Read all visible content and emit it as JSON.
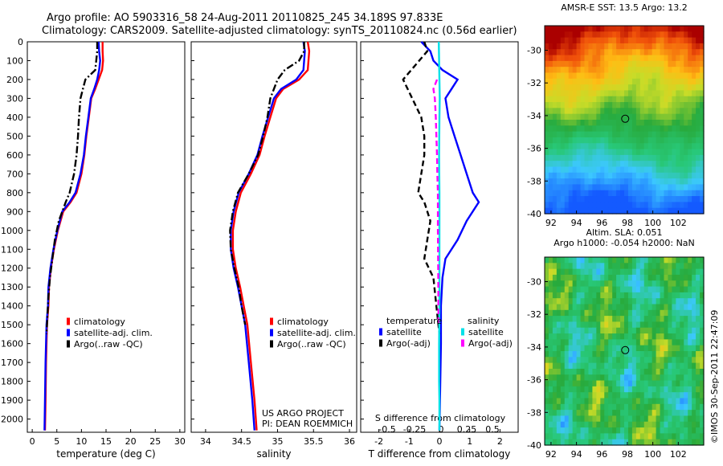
{
  "title_line1": "Argo profile: AO 5903316_58 24-Aug-2011 20110825_245 34.189S 97.833E",
  "title_line2": "Climatology: CARS2009. Satellite-adjusted climatology: synTS_20110824.nc (0.56d earlier)",
  "footer_credit": "©IMOS 30-Sep-2011 22:47:09",
  "project_line1": "US ARGO PROJECT",
  "project_line2": "PI: DEAN ROEMMICH",
  "colors": {
    "climatology": "#ff0000",
    "satellite": "#0000ff",
    "argo": "#000000",
    "sal_sat": "#00e0e8",
    "sal_argo": "#ff00ff"
  },
  "chart_data": [
    {
      "id": "temperature",
      "type": "line",
      "xlabel": "temperature (deg C)",
      "xlim": [
        -1,
        31
      ],
      "ylim": [
        2070,
        0
      ],
      "xticks": [
        0,
        5,
        10,
        15,
        20,
        25,
        30
      ],
      "yticks": [
        0,
        100,
        200,
        300,
        400,
        500,
        600,
        700,
        800,
        900,
        1000,
        1100,
        1200,
        1300,
        1400,
        1500,
        1600,
        1700,
        1800,
        1900,
        2000
      ],
      "legend": [
        "climatology",
        "satellite-adj. clim.",
        "Argo(..raw -QC)"
      ],
      "series": [
        {
          "name": "climatology",
          "color": "#ff0000",
          "style": "solid",
          "x": [
            14.3,
            14.3,
            14.4,
            14.2,
            13.5,
            12.8,
            12.0,
            11.5,
            11.0,
            10.6,
            10.0,
            9.0,
            7.8,
            6.3,
            5.2,
            4.4,
            3.8,
            3.4,
            3.3,
            3.0,
            2.8,
            2.7,
            2.6
          ],
          "y": [
            0,
            50,
            100,
            150,
            200,
            250,
            300,
            400,
            500,
            600,
            700,
            800,
            850,
            900,
            1000,
            1100,
            1200,
            1300,
            1400,
            1500,
            1700,
            1900,
            2060
          ]
        },
        {
          "name": "satellite-adj. clim.",
          "color": "#0000ff",
          "style": "solid",
          "x": [
            13.5,
            13.6,
            13.8,
            13.6,
            13.2,
            12.6,
            11.9,
            11.4,
            10.9,
            10.5,
            9.8,
            8.8,
            7.6,
            6.1,
            5.1,
            4.3,
            3.7,
            3.3,
            3.2,
            2.9,
            2.7,
            2.6,
            2.5
          ],
          "y": [
            0,
            50,
            100,
            150,
            200,
            250,
            300,
            400,
            500,
            600,
            700,
            800,
            850,
            900,
            1000,
            1100,
            1200,
            1300,
            1400,
            1500,
            1700,
            1900,
            2060
          ]
        },
        {
          "name": "Argo(..raw -QC)",
          "color": "#000000",
          "style": "dashdot",
          "x": [
            13.2,
            13.2,
            13.0,
            12.8,
            10.8,
            10.3,
            9.8,
            9.5,
            9.3,
            9.0,
            8.5,
            7.6,
            6.8,
            5.4,
            4.6,
            4.1,
            3.6,
            3.3,
            3.1,
            2.9
          ],
          "y": [
            0,
            50,
            100,
            150,
            200,
            250,
            300,
            400,
            500,
            600,
            700,
            800,
            850,
            950,
            1050,
            1150,
            1250,
            1350,
            1450,
            1550
          ]
        }
      ]
    },
    {
      "id": "salinity",
      "type": "line",
      "xlabel": "salinity",
      "xlim": [
        33.8,
        36.1
      ],
      "ylim": [
        2070,
        0
      ],
      "xticks": [
        34,
        34.5,
        35,
        35.5,
        36
      ],
      "legend": [
        "climatology",
        "satellite-adj. clim.",
        "Argo(..raw -QC)"
      ],
      "series": [
        {
          "name": "climatology",
          "color": "#ff0000",
          "style": "solid",
          "x": [
            35.42,
            35.44,
            35.43,
            35.42,
            35.3,
            35.08,
            34.98,
            34.9,
            34.82,
            34.75,
            34.63,
            34.49,
            34.42,
            34.38,
            34.38,
            34.42,
            34.48,
            34.53,
            34.58,
            34.63,
            34.68,
            34.71
          ],
          "y": [
            0,
            50,
            100,
            150,
            200,
            250,
            300,
            400,
            500,
            600,
            700,
            800,
            900,
            1000,
            1100,
            1200,
            1300,
            1400,
            1500,
            1700,
            1900,
            2060
          ]
        },
        {
          "name": "satellite-adj. clim.",
          "color": "#0000ff",
          "style": "solid",
          "x": [
            35.36,
            35.38,
            35.37,
            35.36,
            35.26,
            35.05,
            34.95,
            34.87,
            34.79,
            34.72,
            34.6,
            34.46,
            34.39,
            34.35,
            34.35,
            34.39,
            34.45,
            34.5,
            34.55,
            34.6,
            34.65,
            34.68
          ],
          "y": [
            0,
            50,
            100,
            150,
            200,
            250,
            300,
            400,
            500,
            600,
            700,
            800,
            900,
            1000,
            1100,
            1200,
            1300,
            1400,
            1500,
            1700,
            1900,
            2060
          ]
        },
        {
          "name": "Argo(..raw -QC)",
          "color": "#000000",
          "style": "dashdot",
          "x": [
            35.37,
            35.37,
            35.3,
            35.1,
            35.0,
            34.95,
            34.9,
            34.86,
            34.8,
            34.73,
            34.6,
            34.45,
            34.38,
            34.34,
            34.35,
            34.4,
            34.46,
            34.5,
            34.55
          ],
          "y": [
            0,
            50,
            100,
            150,
            200,
            250,
            300,
            400,
            500,
            600,
            700,
            800,
            900,
            1000,
            1100,
            1200,
            1300,
            1400,
            1500
          ]
        }
      ]
    },
    {
      "id": "difference",
      "type": "line",
      "xlabel": "T difference from climatology",
      "top_axis_label": "S difference from climatology",
      "xlim": [
        -2.6,
        2.6
      ],
      "ylim": [
        2070,
        0
      ],
      "xticks": [
        -2,
        -1,
        0,
        1,
        2
      ],
      "top_ticks": [
        "-0.5",
        "-0.25",
        "0",
        "0.25",
        "0.5"
      ],
      "legend_temperature_title": "temperature",
      "legend_salinity_title": "salinity",
      "legend_temperature": [
        "satellite",
        "Argo(-adj)"
      ],
      "legend_salinity": [
        "satellite",
        "Argo(-adj)"
      ],
      "series": [
        {
          "name": "T satellite",
          "color": "#0000ff",
          "style": "solid",
          "x": [
            -0.6,
            -0.3,
            -0.2,
            0.1,
            0.6,
            0.4,
            0.2,
            0.3,
            0.5,
            0.7,
            0.9,
            1.1,
            1.3,
            0.9,
            0.6,
            0.2,
            0.1,
            0.05,
            0.05,
            0.0
          ],
          "y": [
            0,
            50,
            100,
            150,
            200,
            250,
            300,
            400,
            500,
            600,
            700,
            800,
            850,
            950,
            1050,
            1150,
            1250,
            1400,
            1600,
            2060
          ]
        },
        {
          "name": "T Argo(-adj)",
          "color": "#000000",
          "style": "dashed",
          "x": [
            -0.5,
            -0.4,
            -1.2,
            -0.9,
            -0.6,
            -0.5,
            -0.5,
            -0.6,
            -0.7,
            -0.5,
            -0.3,
            -0.4,
            -0.5,
            -0.2,
            -0.1,
            0.0
          ],
          "y": [
            0,
            50,
            200,
            300,
            400,
            500,
            600,
            700,
            800,
            850,
            950,
            1050,
            1150,
            1250,
            1400,
            1550
          ]
        },
        {
          "name": "S satellite",
          "color": "#00e0e8",
          "style": "solid",
          "x": [
            -0.02,
            -0.01,
            0.0,
            0.01,
            0.0,
            -0.01,
            0.0,
            0.0,
            0.0,
            0.0,
            -0.01,
            -0.01,
            0.0,
            0.0,
            0.0
          ],
          "y": [
            0,
            100,
            200,
            300,
            400,
            600,
            800,
            1000,
            1200,
            1400,
            1600,
            1800,
            1900,
            2000,
            2060
          ]
        },
        {
          "name": "S Argo(-adj)",
          "color": "#ff00ff",
          "style": "dashed",
          "x": [
            -0.08,
            -0.2,
            -0.15,
            -0.12,
            -0.1,
            -0.08,
            -0.07,
            -0.05,
            -0.05,
            -0.04,
            -0.03
          ],
          "y": [
            200,
            250,
            300,
            400,
            500,
            600,
            700,
            800,
            1000,
            1200,
            1500
          ]
        }
      ]
    },
    {
      "id": "sst_map",
      "type": "heatmap",
      "title": "AMSR-E SST: 13.5 Argo: 13.2",
      "xlim": [
        91.5,
        104
      ],
      "ylim": [
        -40,
        -28.5
      ],
      "xticks": [
        92,
        94,
        96,
        98,
        100,
        102
      ],
      "yticks": [
        -30,
        -32,
        -34,
        -36,
        -38,
        -40
      ],
      "marker": {
        "lon": 97.83,
        "lat": -34.19
      }
    },
    {
      "id": "sla_map",
      "type": "heatmap",
      "title_line1": "Altim. SLA: 0.051",
      "title_line2": "Argo h1000: -0.054 h2000: NaN",
      "xlim": [
        91.5,
        104
      ],
      "ylim": [
        -40,
        -28.5
      ],
      "xticks": [
        92,
        94,
        96,
        98,
        100,
        102
      ],
      "yticks": [
        -30,
        -32,
        -34,
        -36,
        -38,
        -40
      ],
      "marker": {
        "lon": 97.83,
        "lat": -34.19
      }
    }
  ]
}
